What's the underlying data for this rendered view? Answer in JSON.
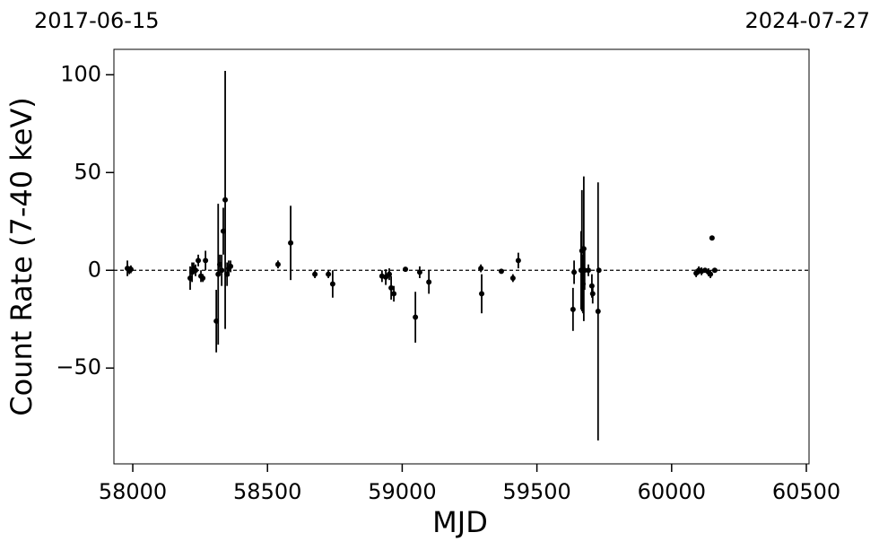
{
  "chart_data": {
    "type": "scatter",
    "xlabel": "MJD",
    "ylabel": "Count Rate (7-40 keV)",
    "annotations": [
      "2017-06-15",
      "2024-07-27"
    ],
    "xlim": [
      57930,
      60510
    ],
    "ylim": [
      -99,
      113
    ],
    "xticks": [
      58000,
      58500,
      59000,
      59500,
      60000,
      60500
    ],
    "yticks": [
      {
        "value": -50,
        "label": "−50"
      },
      0,
      50,
      100
    ],
    "hline": 0,
    "color": "#000000",
    "series": [
      {
        "x": [
          57980,
          57987,
          57993,
          58213,
          58220,
          58226,
          58233,
          58243,
          58253,
          58260,
          58270,
          58310,
          58317,
          58323,
          58330,
          58336,
          58343,
          58350,
          58356,
          58363,
          58539,
          58586,
          58676,
          58726,
          58742,
          58925,
          58939,
          58952,
          58959,
          58969,
          59012,
          59049,
          59065,
          59099,
          59292,
          59295,
          59368,
          59411,
          59431,
          59634,
          59638,
          59664,
          59667,
          59671,
          59674,
          59677,
          59691,
          59704,
          59707,
          59727,
          59730,
          60091,
          60101,
          60111,
          60124,
          60137,
          60144,
          60150,
          60160
        ],
        "values": [
          1,
          0,
          0.5,
          -4,
          -1,
          1,
          0,
          5,
          -3,
          -4,
          5,
          -26,
          -2,
          3,
          0,
          20,
          36,
          -2,
          1,
          2,
          3,
          14,
          -2,
          -2,
          -7,
          -3,
          -3.5,
          -2,
          -9,
          -12,
          0.5,
          -24,
          -1,
          -6,
          1,
          -12,
          -0.5,
          -4,
          5,
          -20,
          -1,
          0,
          10,
          -7,
          11,
          0,
          0,
          -8,
          -12,
          -21,
          0,
          -1.5,
          0,
          -0.5,
          0,
          -1,
          -2,
          16.5,
          0
        ],
        "errors": [
          4,
          2,
          2,
          6,
          5,
          3,
          3,
          3,
          3,
          2,
          5,
          16,
          36,
          5,
          8,
          12,
          66,
          6,
          4,
          3,
          2,
          19,
          2,
          2,
          7,
          3,
          4,
          3,
          6,
          4,
          1,
          13,
          3,
          6,
          2,
          10,
          1,
          2,
          4,
          11,
          6,
          20,
          31,
          15,
          37,
          10,
          3,
          6,
          5,
          66,
          1,
          2,
          2,
          2,
          1,
          2,
          2,
          1,
          1
        ]
      }
    ]
  }
}
